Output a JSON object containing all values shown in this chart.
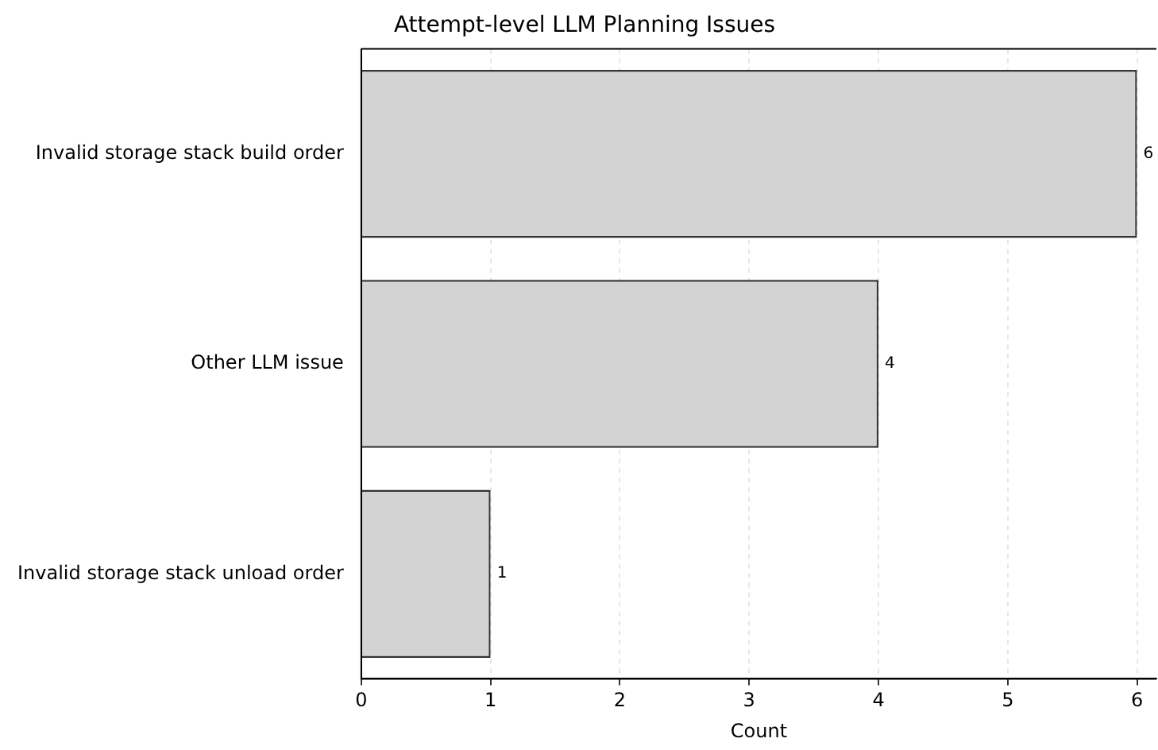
{
  "chart_data": {
    "type": "bar",
    "orientation": "horizontal",
    "title": "Attempt-level LLM Planning Issues",
    "xlabel": "Count",
    "categories": [
      "Invalid storage stack build order",
      "Other LLM issue",
      "Invalid storage stack unload order"
    ],
    "values": [
      6,
      4,
      1
    ],
    "color": "#d3d3d3",
    "xlim": [
      0,
      6.15
    ],
    "xticks": [
      0,
      1,
      2,
      3,
      4,
      5,
      6
    ],
    "grid": "x",
    "data_labels": true,
    "legend": false
  }
}
